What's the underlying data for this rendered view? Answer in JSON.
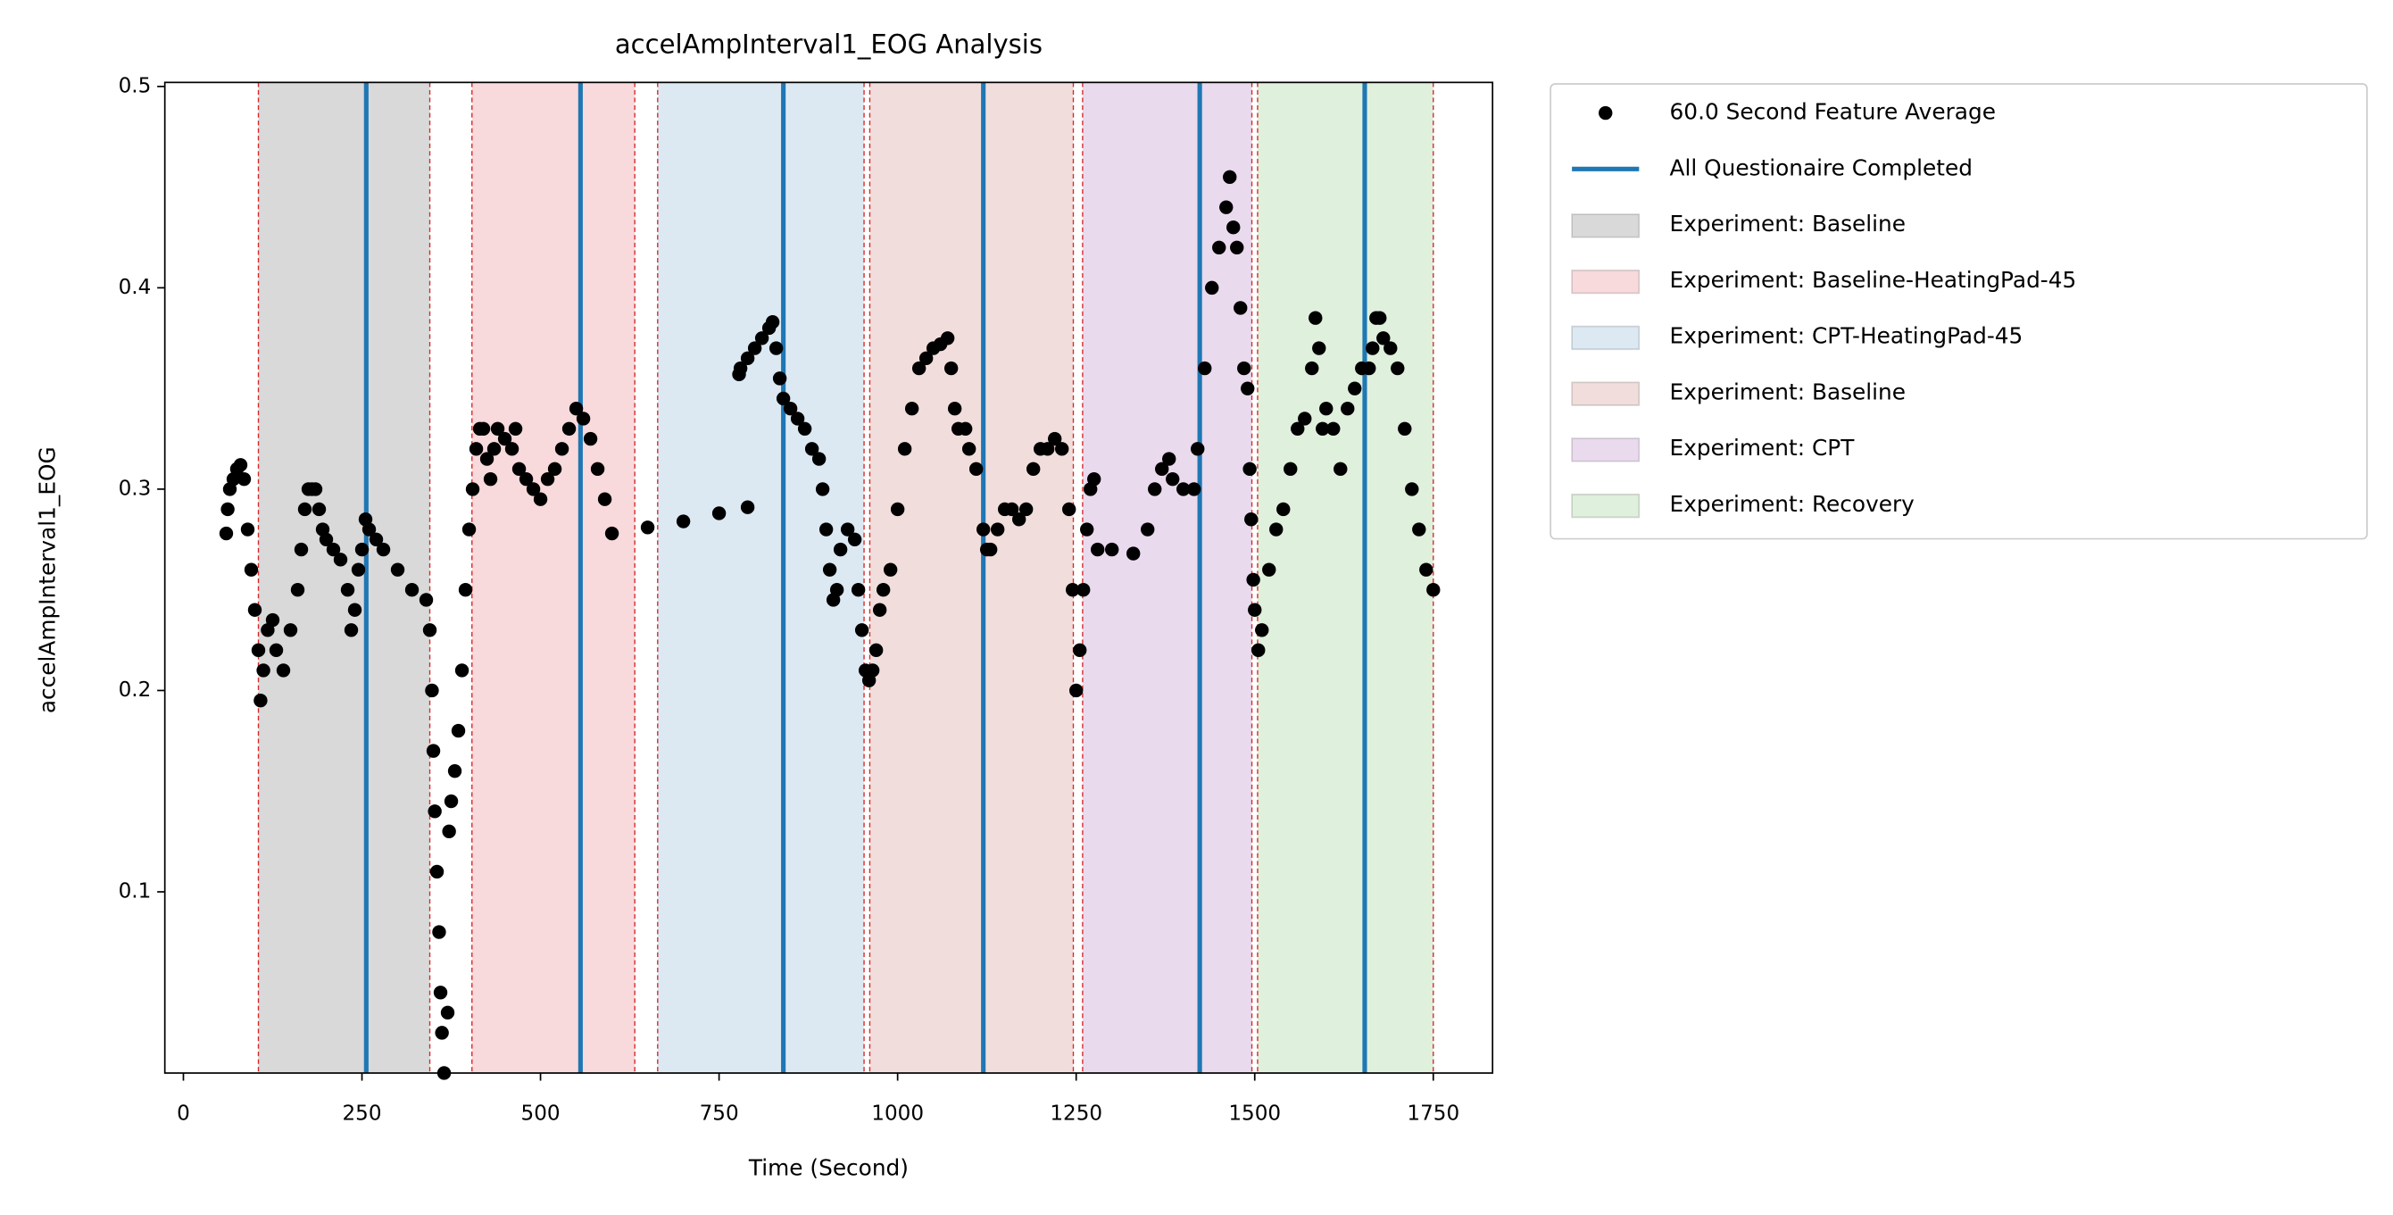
{
  "chart_data": {
    "type": "scatter",
    "title": "accelAmpInterval1_EOG Analysis",
    "xlabel": "Time (Second)",
    "ylabel": "accelAmpInterval1_EOG",
    "xlim": [
      -26,
      1833
    ],
    "ylim": [
      0.01,
      0.502
    ],
    "xticks": [
      0,
      250,
      500,
      750,
      1000,
      1250,
      1500,
      1750
    ],
    "yticks": [
      0.1,
      0.2,
      0.3,
      0.4,
      0.5
    ],
    "x": [
      60,
      62,
      65,
      70,
      75,
      80,
      85,
      90,
      95,
      100,
      105,
      108,
      112,
      118,
      125,
      130,
      140,
      150,
      160,
      165,
      170,
      175,
      180,
      185,
      190,
      195,
      200,
      210,
      220,
      230,
      235,
      240,
      245,
      250,
      255,
      260,
      270,
      280,
      300,
      320,
      340,
      345,
      348,
      350,
      352,
      355,
      358,
      360,
      362,
      365,
      370,
      372,
      375,
      380,
      385,
      390,
      395,
      400,
      405,
      410,
      415,
      420,
      425,
      430,
      435,
      440,
      450,
      460,
      465,
      470,
      480,
      490,
      500,
      510,
      520,
      530,
      540,
      550,
      560,
      570,
      580,
      590,
      600,
      650,
      700,
      750,
      790,
      778,
      780,
      790,
      800,
      810,
      820,
      825,
      830,
      835,
      840,
      850,
      860,
      870,
      880,
      890,
      895,
      900,
      905,
      910,
      915,
      920,
      930,
      940,
      945,
      950,
      955,
      960,
      965,
      970,
      975,
      980,
      990,
      1000,
      1010,
      1020,
      1030,
      1040,
      1050,
      1060,
      1070,
      1075,
      1080,
      1085,
      1095,
      1100,
      1110,
      1120,
      1125,
      1130,
      1140,
      1150,
      1160,
      1170,
      1180,
      1190,
      1200,
      1210,
      1220,
      1230,
      1240,
      1245,
      1250,
      1255,
      1260,
      1265,
      1270,
      1275,
      1280,
      1300,
      1330,
      1350,
      1360,
      1370,
      1380,
      1385,
      1400,
      1415,
      1420,
      1430,
      1440,
      1450,
      1460,
      1465,
      1470,
      1475,
      1480,
      1485,
      1490,
      1493,
      1495,
      1498,
      1500,
      1505,
      1510,
      1520,
      1530,
      1540,
      1550,
      1560,
      1570,
      1580,
      1585,
      1590,
      1595,
      1600,
      1610,
      1620,
      1630,
      1640,
      1650,
      1660,
      1665,
      1670,
      1675,
      1680,
      1690,
      1700,
      1710,
      1720,
      1730,
      1740,
      1750
    ],
    "series": [
      {
        "name": "60.0 Second Feature Average",
        "color": "#000000",
        "values": [
          0.278,
          0.29,
          0.3,
          0.305,
          0.31,
          0.312,
          0.305,
          0.28,
          0.26,
          0.24,
          0.22,
          0.195,
          0.21,
          0.23,
          0.235,
          0.22,
          0.21,
          0.23,
          0.25,
          0.27,
          0.29,
          0.3,
          0.3,
          0.3,
          0.29,
          0.28,
          0.275,
          0.27,
          0.265,
          0.25,
          0.23,
          0.24,
          0.26,
          0.27,
          0.285,
          0.28,
          0.275,
          0.27,
          0.26,
          0.25,
          0.245,
          0.23,
          0.2,
          0.17,
          0.14,
          0.11,
          0.08,
          0.05,
          0.03,
          0.01,
          0.04,
          0.13,
          0.145,
          0.16,
          0.18,
          0.21,
          0.25,
          0.28,
          0.3,
          0.32,
          0.33,
          0.33,
          0.315,
          0.305,
          0.32,
          0.33,
          0.325,
          0.32,
          0.33,
          0.31,
          0.305,
          0.3,
          0.295,
          0.305,
          0.31,
          0.32,
          0.33,
          0.34,
          0.335,
          0.325,
          0.31,
          0.295,
          0.278,
          0.281,
          0.284,
          0.288,
          0.291,
          0.357,
          0.36,
          0.365,
          0.37,
          0.375,
          0.38,
          0.383,
          0.37,
          0.355,
          0.345,
          0.34,
          0.335,
          0.33,
          0.32,
          0.315,
          0.3,
          0.28,
          0.26,
          0.245,
          0.25,
          0.27,
          0.28,
          0.275,
          0.25,
          0.23,
          0.21,
          0.205,
          0.21,
          0.22,
          0.24,
          0.25,
          0.26,
          0.29,
          0.32,
          0.34,
          0.36,
          0.365,
          0.37,
          0.372,
          0.375,
          0.36,
          0.34,
          0.33,
          0.33,
          0.32,
          0.31,
          0.28,
          0.27,
          0.27,
          0.28,
          0.29,
          0.29,
          0.285,
          0.29,
          0.31,
          0.32,
          0.32,
          0.325,
          0.32,
          0.29,
          0.25,
          0.2,
          0.22,
          0.25,
          0.28,
          0.3,
          0.305,
          0.27,
          0.27,
          0.268,
          0.28,
          0.3,
          0.31,
          0.315,
          0.305,
          0.3,
          0.3,
          0.32,
          0.36,
          0.4,
          0.42,
          0.44,
          0.455,
          0.43,
          0.42,
          0.39,
          0.36,
          0.35,
          0.31,
          0.285,
          0.255,
          0.24,
          0.22,
          0.23,
          0.26,
          0.28,
          0.29,
          0.31,
          0.33,
          0.335,
          0.36,
          0.385,
          0.37,
          0.33,
          0.34,
          0.33,
          0.31,
          0.34,
          0.35,
          0.36,
          0.36,
          0.37,
          0.385,
          0.385,
          0.375,
          0.37,
          0.36,
          0.33,
          0.3,
          0.28,
          0.26,
          0.25
        ]
      }
    ],
    "vlines": {
      "name": "All Questionaire Completed",
      "color": "#1f77b4",
      "x": [
        256,
        556,
        840,
        1120,
        1423,
        1654
      ]
    },
    "spans": [
      {
        "name": "Experiment: Baseline",
        "color": "#d9d9d9",
        "start": 105,
        "end": 345
      },
      {
        "name": "Experiment: Baseline-HeatingPad-45",
        "color": "#f8d9dc",
        "start": 404,
        "end": 632
      },
      {
        "name": "Experiment: CPT-HeatingPad-45",
        "color": "#dce9f3",
        "start": 664,
        "end": 953
      },
      {
        "name": "Experiment: Baseline",
        "color": "#f1dedc",
        "start": 961,
        "end": 1246
      },
      {
        "name": "Experiment: CPT",
        "color": "#eadaed",
        "start": 1259,
        "end": 1496
      },
      {
        "name": "Experiment: Recovery",
        "color": "#dff0dc",
        "start": 1504,
        "end": 1750
      }
    ]
  }
}
